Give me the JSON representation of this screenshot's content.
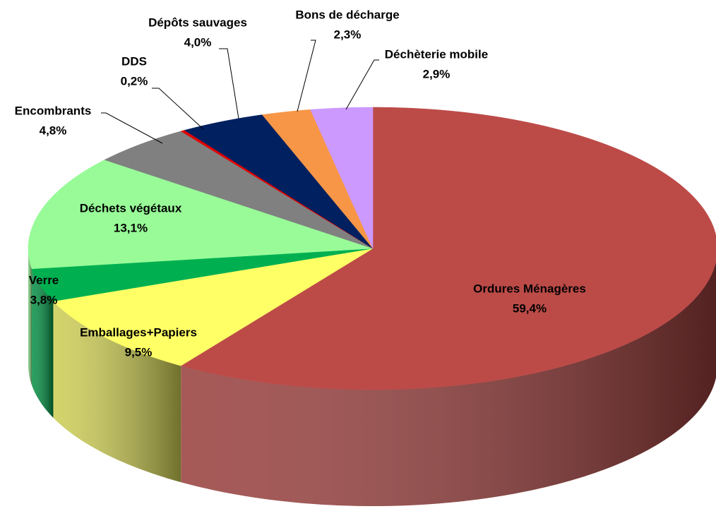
{
  "chart_data": {
    "type": "pie",
    "categories": [
      "Ordures Ménagères",
      "Emballages+Papiers",
      "Verre",
      "Déchets végétaux",
      "Encombrants",
      "DDS",
      "Dépôts sauvages",
      "Bons de décharge",
      "Déchèterie mobile"
    ],
    "values": [
      59.4,
      9.5,
      3.8,
      13.1,
      4.8,
      0.2,
      4.0,
      2.3,
      2.9
    ],
    "value_labels": [
      "59,4%",
      "9,5%",
      "3,8%",
      "13,1%",
      "4,8%",
      "0,2%",
      "4,0%",
      "2,3%",
      "2,9%"
    ],
    "colors": [
      "#bc4b48",
      "#ffff66",
      "#00b050",
      "#98fb98",
      "#808080",
      "#e00000",
      "#002060",
      "#f79646",
      "#cc99ff"
    ]
  }
}
